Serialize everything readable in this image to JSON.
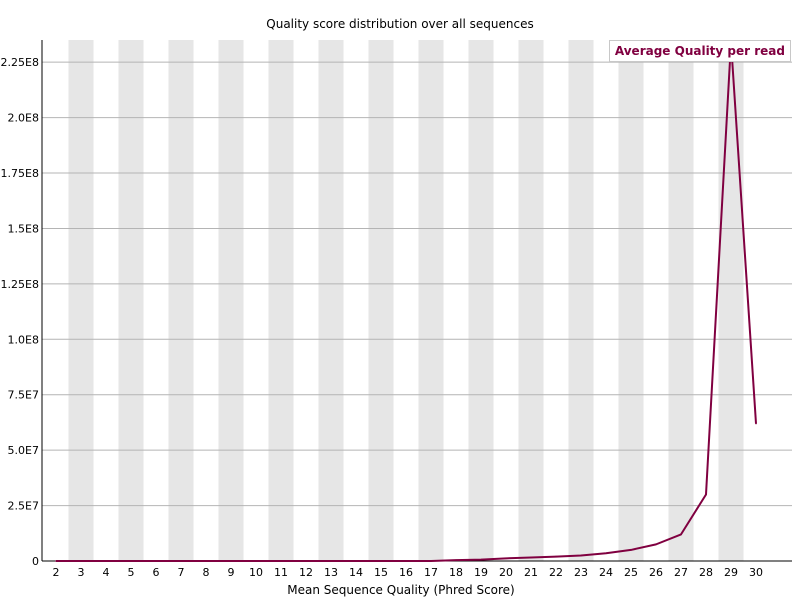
{
  "chart_data": {
    "type": "line",
    "title": "Quality score distribution over all sequences",
    "xlabel": "Mean Sequence Quality (Phred Score)",
    "ylabel": "",
    "x": [
      2,
      3,
      4,
      5,
      6,
      7,
      8,
      9,
      10,
      11,
      12,
      13,
      14,
      15,
      16,
      17,
      18,
      19,
      20,
      21,
      22,
      23,
      24,
      25,
      26,
      27,
      28,
      29,
      30
    ],
    "series": [
      {
        "name": "Average Quality per read",
        "color": "#800040",
        "values": [
          0,
          0,
          0,
          0,
          0,
          0,
          0,
          0,
          0,
          0,
          0,
          0,
          0,
          0,
          0,
          0,
          400000,
          600000,
          1200000,
          1600000,
          2000000,
          2500000,
          3500000,
          5000000,
          7500000,
          12000000,
          30000000,
          234000000,
          62000000
        ]
      }
    ],
    "ylim": [
      0,
      235000000
    ],
    "y_ticks": [
      0,
      25000000,
      50000000,
      75000000,
      100000000,
      125000000,
      150000000,
      175000000,
      200000000,
      225000000
    ],
    "y_tick_labels": [
      "0",
      "2.5E7",
      "5.0E7",
      "7.5E7",
      "1.0E8",
      "1.25E8",
      "1.5E8",
      "1.75E8",
      "2.0E8",
      "2.25E8"
    ],
    "grid": true,
    "stripe_color": "#e6e6e6",
    "legend_position": "top-right"
  }
}
